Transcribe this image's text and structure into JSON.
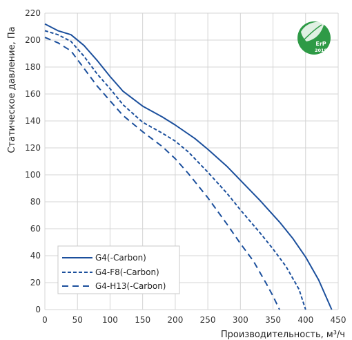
{
  "chart_data": {
    "type": "line",
    "title": "",
    "xlabel": "Производительность, м³/ч",
    "ylabel": "Статическое давление, Па",
    "xlim": [
      0,
      450
    ],
    "ylim": [
      0,
      220
    ],
    "xticks": [
      0,
      50,
      100,
      150,
      200,
      250,
      300,
      350,
      400,
      450
    ],
    "yticks": [
      0,
      20,
      40,
      60,
      80,
      100,
      120,
      140,
      160,
      180,
      200,
      220
    ],
    "grid": true,
    "legend_position": "bottom-left",
    "series": [
      {
        "name": "G4(-Carbon)",
        "style": "solid",
        "color": "#1b4f9c",
        "points": [
          [
            0,
            212
          ],
          [
            20,
            207
          ],
          [
            40,
            204
          ],
          [
            60,
            196
          ],
          [
            80,
            185
          ],
          [
            100,
            173
          ],
          [
            120,
            162
          ],
          [
            150,
            151
          ],
          [
            180,
            143
          ],
          [
            200,
            137
          ],
          [
            230,
            127
          ],
          [
            250,
            119
          ],
          [
            280,
            106
          ],
          [
            300,
            96
          ],
          [
            330,
            81
          ],
          [
            360,
            65
          ],
          [
            380,
            53
          ],
          [
            400,
            39
          ],
          [
            420,
            22
          ],
          [
            440,
            0
          ]
        ]
      },
      {
        "name": "G4-F8(-Carbon)",
        "style": "short-dash",
        "color": "#1b4f9c",
        "points": [
          [
            0,
            207
          ],
          [
            20,
            204
          ],
          [
            40,
            199
          ],
          [
            60,
            188
          ],
          [
            80,
            175
          ],
          [
            100,
            164
          ],
          [
            120,
            152
          ],
          [
            150,
            139
          ],
          [
            180,
            131
          ],
          [
            200,
            125
          ],
          [
            220,
            117
          ],
          [
            250,
            102
          ],
          [
            280,
            86
          ],
          [
            300,
            74
          ],
          [
            330,
            57
          ],
          [
            350,
            45
          ],
          [
            370,
            32
          ],
          [
            390,
            15
          ],
          [
            400,
            0
          ]
        ]
      },
      {
        "name": "G4-H13(-Carbon)",
        "style": "long-dash",
        "color": "#1b4f9c",
        "points": [
          [
            0,
            202
          ],
          [
            20,
            198
          ],
          [
            40,
            192
          ],
          [
            60,
            179
          ],
          [
            80,
            166
          ],
          [
            100,
            155
          ],
          [
            120,
            144
          ],
          [
            150,
            132
          ],
          [
            180,
            121
          ],
          [
            200,
            112
          ],
          [
            220,
            101
          ],
          [
            250,
            83
          ],
          [
            280,
            63
          ],
          [
            300,
            49
          ],
          [
            320,
            36
          ],
          [
            340,
            19
          ],
          [
            350,
            10
          ],
          [
            360,
            0
          ]
        ]
      }
    ]
  },
  "badge": {
    "icon": "erp-leaf-icon",
    "text_top": "ErP",
    "text_bottom": "2018",
    "color": "#2e9a46"
  }
}
